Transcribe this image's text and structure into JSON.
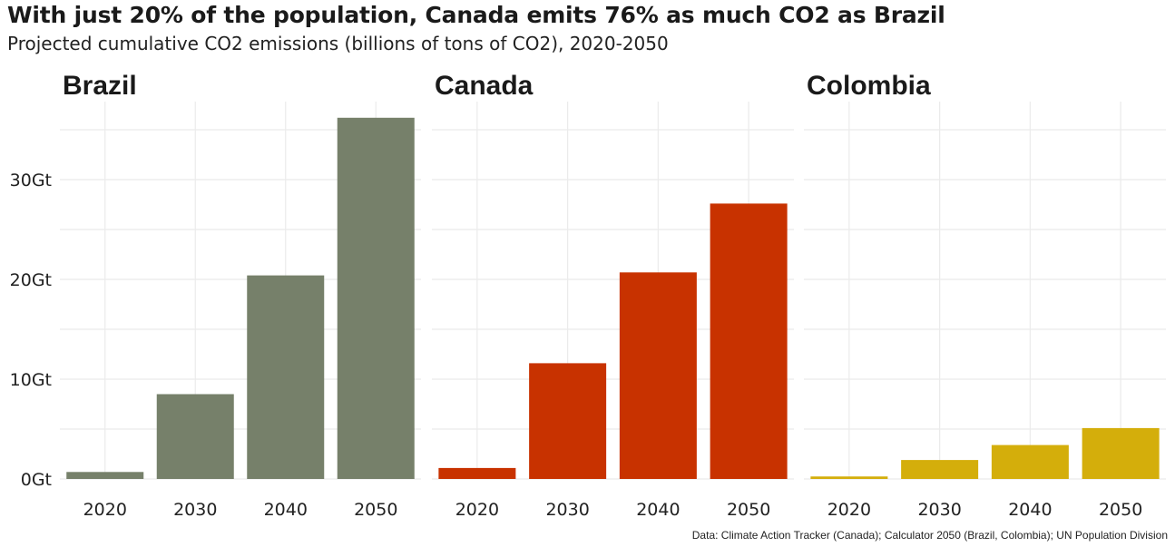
{
  "title": "With just 20% of the population, Canada emits 76% as much CO2 as Brazil",
  "subtitle": "Projected cumulative CO2 emissions (billions of tons of CO2), 2020-2050",
  "caption": "Data: Climate Action Tracker (Canada); Calculator 2050 (Brazil, Colombia); UN Population Division",
  "chart_data": {
    "type": "bar",
    "facets": [
      {
        "name": "Brazil",
        "color": "#76806a",
        "categories": [
          "2020",
          "2030",
          "2040",
          "2050"
        ],
        "values": [
          0.7,
          8.5,
          20.4,
          36.2
        ]
      },
      {
        "name": "Canada",
        "color": "#c83200",
        "categories": [
          "2020",
          "2030",
          "2040",
          "2050"
        ],
        "values": [
          1.1,
          11.6,
          20.7,
          27.6
        ]
      },
      {
        "name": "Colombia",
        "color": "#d4ae0b",
        "categories": [
          "2020",
          "2030",
          "2040",
          "2050"
        ],
        "values": [
          0.25,
          1.9,
          3.4,
          5.1
        ]
      }
    ],
    "y_ticks": [
      0,
      10,
      20,
      30
    ],
    "y_tick_labels": [
      "0Gt",
      "10Gt",
      "20Gt",
      "30Gt"
    ],
    "ylim": [
      0,
      38
    ],
    "xlabel": "",
    "ylabel": "",
    "grid": true,
    "legend": "none"
  }
}
